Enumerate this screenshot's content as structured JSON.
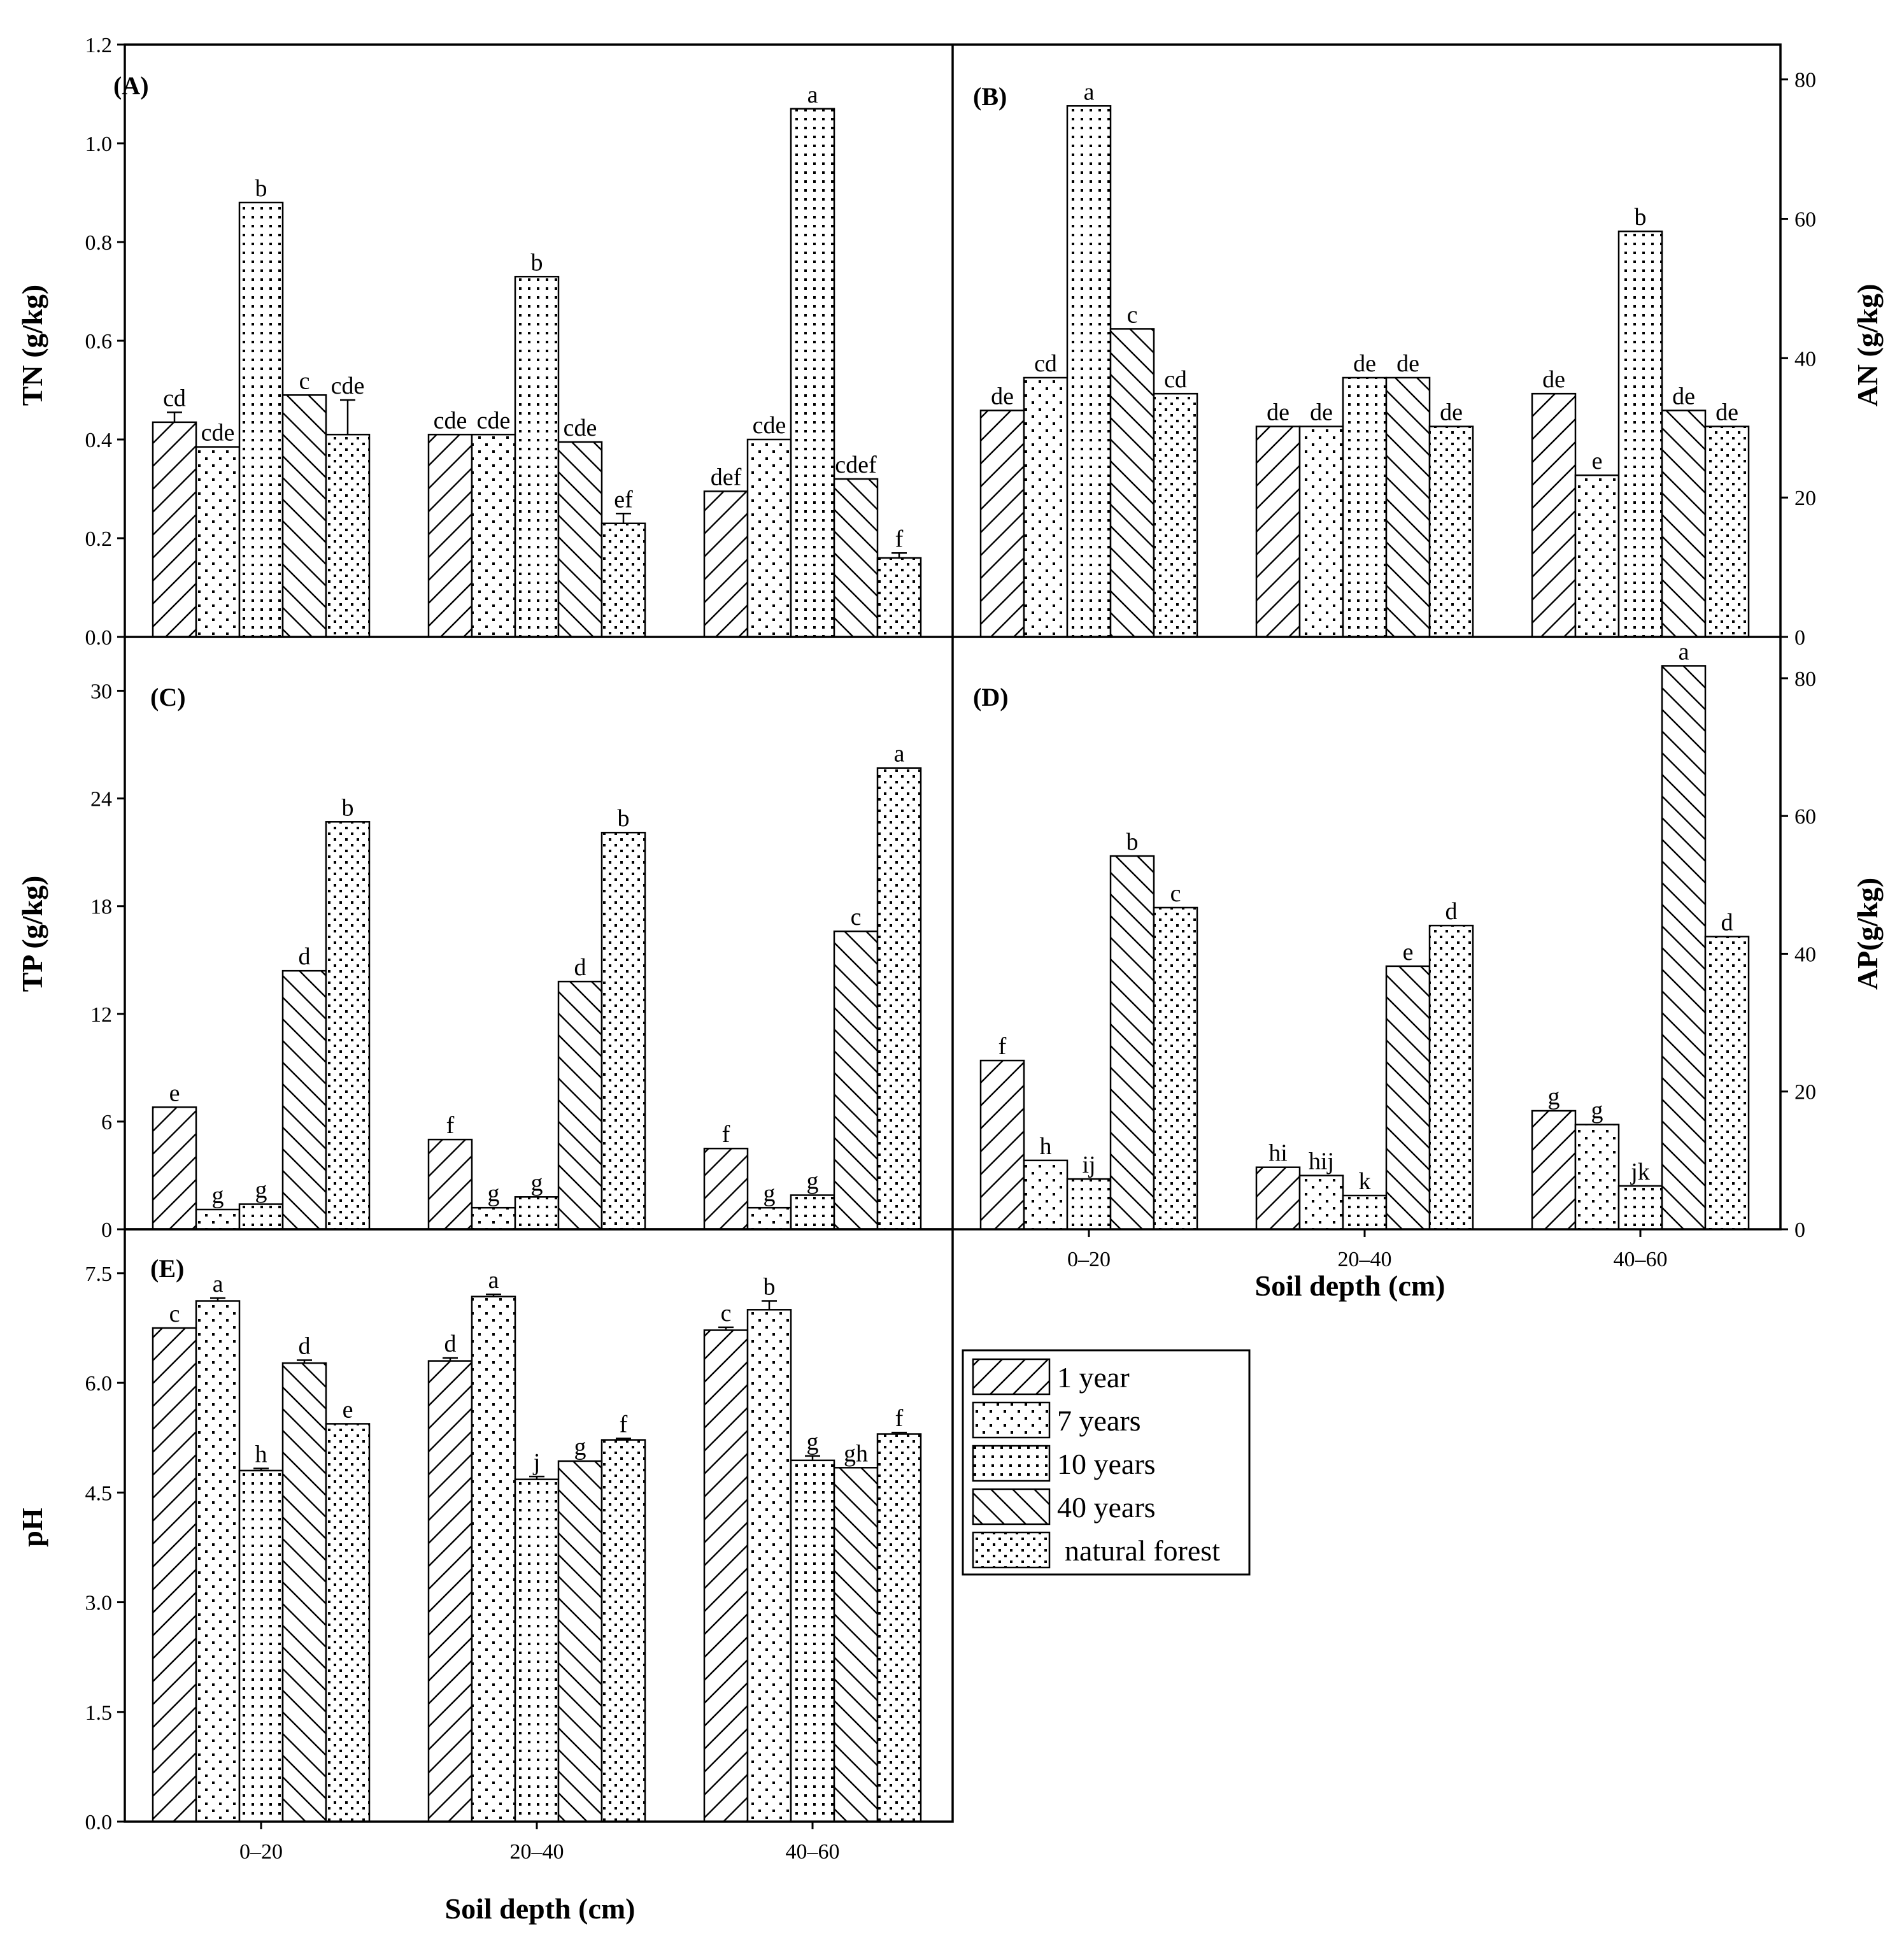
{
  "legend": {
    "items": [
      {
        "label": "1 year",
        "pattern": "diag-fwd"
      },
      {
        "label": "7 years",
        "pattern": "dots"
      },
      {
        "label": "10 years",
        "pattern": "grid-dots"
      },
      {
        "label": "40 years",
        "pattern": "diag-back"
      },
      {
        "label": "natural forest",
        "pattern": "dense-dots"
      }
    ]
  },
  "chart_data": [
    {
      "type": "bar",
      "panel": "(A)",
      "categories": [
        "0–20",
        "20–40",
        "40–60"
      ],
      "ylabel": "TN (g/kg)",
      "xlabel": "",
      "ylim": [
        0,
        1.2
      ],
      "yticks": [
        "0.0",
        "0.2",
        "0.4",
        "0.6",
        "0.8",
        "1.0",
        "1.2"
      ],
      "series": [
        {
          "name": "1 year",
          "values": [
            0.435,
            0.41,
            0.295
          ],
          "errors": [
            0.02,
            0,
            0
          ],
          "sig": [
            "cd",
            "cde",
            "def"
          ]
        },
        {
          "name": "7 years",
          "values": [
            0.385,
            0.41,
            0.4
          ],
          "errors": [
            0,
            0,
            0
          ],
          "sig": [
            "cde",
            "cde",
            "cde"
          ]
        },
        {
          "name": "10 years",
          "values": [
            0.88,
            0.73,
            1.07
          ],
          "errors": [
            0,
            0,
            0
          ],
          "sig": [
            "b",
            "b",
            "a"
          ]
        },
        {
          "name": "40 years",
          "values": [
            0.49,
            0.395,
            0.32
          ],
          "errors": [
            0,
            0,
            0
          ],
          "sig": [
            "c",
            "cde",
            "cdef"
          ]
        },
        {
          "name": "natural forest",
          "values": [
            0.41,
            0.23,
            0.16
          ],
          "errors": [
            0.07,
            0.02,
            0.01
          ],
          "sig": [
            "cde",
            "ef",
            "f"
          ]
        }
      ]
    },
    {
      "type": "bar",
      "panel": "(B)",
      "categories": [
        "0–20",
        "20–40",
        "40–60"
      ],
      "ylabel": "AN (g/kg)",
      "xlabel": "",
      "ylim": [
        0,
        85
      ],
      "yticks": [
        "0",
        "20",
        "40",
        "60",
        "80"
      ],
      "series": [
        {
          "name": "1 year",
          "values": [
            32.5,
            30.2,
            34.9
          ],
          "errors": [
            0,
            0,
            0
          ],
          "sig": [
            "de",
            "de",
            "de"
          ]
        },
        {
          "name": "7 years",
          "values": [
            37.2,
            30.2,
            23.2
          ],
          "errors": [
            0,
            0,
            0
          ],
          "sig": [
            "cd",
            "de",
            "e"
          ]
        },
        {
          "name": "10 years",
          "values": [
            76.2,
            37.2,
            58.2
          ],
          "errors": [
            0,
            0,
            0
          ],
          "sig": [
            "a",
            "de",
            "b"
          ]
        },
        {
          "name": "40 years",
          "values": [
            44.2,
            37.2,
            32.5
          ],
          "errors": [
            0,
            0,
            0
          ],
          "sig": [
            "c",
            "de",
            "de"
          ]
        },
        {
          "name": "natural forest",
          "values": [
            34.9,
            30.2,
            30.2
          ],
          "errors": [
            0,
            0,
            0
          ],
          "sig": [
            "cd",
            "de",
            "de"
          ]
        }
      ]
    },
    {
      "type": "bar",
      "panel": "(C)",
      "categories": [
        "0–20",
        "20–40",
        "40–60"
      ],
      "ylabel": "TP (g/kg)",
      "xlabel": "",
      "ylim": [
        0,
        33
      ],
      "yticks": [
        "0",
        "6",
        "12",
        "18",
        "24",
        "30"
      ],
      "series": [
        {
          "name": "1 year",
          "values": [
            6.8,
            5.0,
            4.5
          ],
          "errors": [
            0,
            0,
            0
          ],
          "sig": [
            "e",
            "f",
            "f"
          ]
        },
        {
          "name": "7 years",
          "values": [
            1.1,
            1.2,
            1.2
          ],
          "errors": [
            0,
            0,
            0
          ],
          "sig": [
            "g",
            "g",
            "g"
          ]
        },
        {
          "name": "10 years",
          "values": [
            1.4,
            1.8,
            1.9
          ],
          "errors": [
            0,
            0,
            0
          ],
          "sig": [
            "g",
            "g",
            "g"
          ]
        },
        {
          "name": "40 years",
          "values": [
            14.4,
            13.8,
            16.6
          ],
          "errors": [
            0,
            0,
            0
          ],
          "sig": [
            "d",
            "d",
            "c"
          ]
        },
        {
          "name": "natural forest",
          "values": [
            22.7,
            22.1,
            25.7
          ],
          "errors": [
            0,
            0,
            0
          ],
          "sig": [
            "b",
            "b",
            "a"
          ]
        }
      ]
    },
    {
      "type": "bar",
      "panel": "(D)",
      "categories": [
        "0–20",
        "20–40",
        "40–60"
      ],
      "ylabel": "AP(g/kg)",
      "xlabel": "Soil depth (cm)",
      "ylim": [
        0,
        86
      ],
      "yticks": [
        "0",
        "20",
        "40",
        "60",
        "80"
      ],
      "series": [
        {
          "name": "1 year",
          "values": [
            24.5,
            9.0,
            17.2
          ],
          "errors": [
            0,
            0,
            0
          ],
          "sig": [
            "f",
            "hi",
            "g"
          ]
        },
        {
          "name": "7 years",
          "values": [
            10.0,
            7.8,
            15.2
          ],
          "errors": [
            0,
            0,
            0
          ],
          "sig": [
            "h",
            "hij",
            "g"
          ]
        },
        {
          "name": "10 years",
          "values": [
            7.3,
            4.9,
            6.3
          ],
          "errors": [
            0,
            0,
            0
          ],
          "sig": [
            "ij",
            "k",
            "jk"
          ]
        },
        {
          "name": "40 years",
          "values": [
            54.2,
            38.2,
            81.8
          ],
          "errors": [
            0,
            0,
            0
          ],
          "sig": [
            "b",
            "e",
            "a"
          ]
        },
        {
          "name": "natural forest",
          "values": [
            46.7,
            44.1,
            42.5
          ],
          "errors": [
            0,
            0,
            0
          ],
          "sig": [
            "c",
            "d",
            "d"
          ]
        }
      ]
    },
    {
      "type": "bar",
      "panel": "(E)",
      "categories": [
        "0–20",
        "20–40",
        "40–60"
      ],
      "ylabel": "pH",
      "xlabel": "Soil depth (cm)",
      "ylim": [
        0,
        8.1
      ],
      "yticks": [
        "0.0",
        "1.5",
        "3.0",
        "4.5",
        "6.0",
        "7.5"
      ],
      "series": [
        {
          "name": "1 year",
          "values": [
            6.75,
            6.3,
            6.72
          ],
          "errors": [
            0,
            0.04,
            0.04
          ],
          "sig": [
            "c",
            "d",
            "c"
          ]
        },
        {
          "name": "7 years",
          "values": [
            7.12,
            7.18,
            7.0
          ],
          "errors": [
            0.04,
            0.03,
            0.12
          ],
          "sig": [
            "a",
            "a",
            "b"
          ]
        },
        {
          "name": "10 years",
          "values": [
            4.8,
            4.68,
            4.94
          ],
          "errors": [
            0.03,
            0.04,
            0.06
          ],
          "sig": [
            "h",
            "j",
            "g"
          ]
        },
        {
          "name": "40 years",
          "values": [
            6.27,
            4.93,
            4.84
          ],
          "errors": [
            0.04,
            0,
            0
          ],
          "sig": [
            "d",
            "g",
            "gh"
          ]
        },
        {
          "name": "natural forest",
          "values": [
            5.44,
            5.22,
            5.3
          ],
          "errors": [
            0,
            0.02,
            0.02
          ],
          "sig": [
            "e",
            "f",
            "f"
          ]
        }
      ]
    }
  ]
}
